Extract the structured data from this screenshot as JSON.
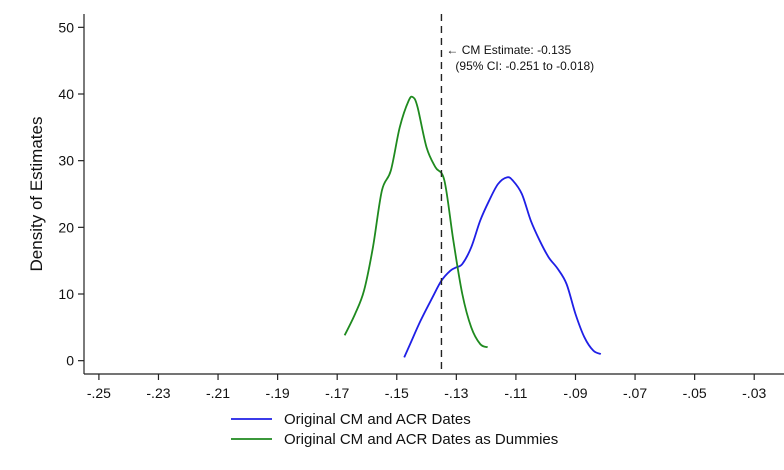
{
  "chart_data": {
    "type": "line",
    "title": "",
    "xlabel": "",
    "ylabel": "Density of Estimates",
    "xlim": [
      -0.255,
      -0.02
    ],
    "ylim": [
      -2,
      52
    ],
    "x_ticks": [
      -0.25,
      -0.23,
      -0.21,
      -0.19,
      -0.17,
      -0.15,
      -0.13,
      -0.11,
      -0.09,
      -0.07,
      -0.05,
      -0.03
    ],
    "x_tick_labels": [
      "-.25",
      "-.23",
      "-.21",
      "-.19",
      "-.17",
      "-.15",
      "-.13",
      "-.11",
      "-.09",
      "-.07",
      "-.05",
      "-.03"
    ],
    "y_ticks": [
      0,
      10,
      20,
      30,
      40,
      50
    ],
    "y_tick_labels": [
      "0",
      "10",
      "20",
      "30",
      "40",
      "50"
    ],
    "grid": false,
    "legend_position": "bottom",
    "reference_line": {
      "x": -0.135,
      "style": "dashed",
      "color": "#222222"
    },
    "annotation": {
      "line1": "← CM Estimate: -0.135",
      "line2": "(95% CI: -0.251 to -0.018)",
      "x": -0.134,
      "y": 46
    },
    "series": [
      {
        "name": "Original CM and ACR Dates",
        "color": "#1f1fe6",
        "x": [
          -0.1475,
          -0.1455,
          -0.142,
          -0.138,
          -0.135,
          -0.132,
          -0.13,
          -0.128,
          -0.125,
          -0.122,
          -0.119,
          -0.116,
          -0.113,
          -0.111,
          -0.108,
          -0.105,
          -0.102,
          -0.099,
          -0.096,
          -0.093,
          -0.09,
          -0.087,
          -0.084,
          -0.0815
        ],
        "y": [
          0.5,
          2.5,
          6,
          9.5,
          12,
          13.5,
          14,
          14.5,
          17,
          21,
          24,
          26.5,
          27.5,
          27,
          25,
          21,
          18,
          15.5,
          13.8,
          11.5,
          7,
          3.5,
          1.5,
          1
        ]
      },
      {
        "name": "Original CM and ACR Dates as Dummies",
        "color": "#1f8a1f",
        "x": [
          -0.1675,
          -0.164,
          -0.161,
          -0.158,
          -0.155,
          -0.152,
          -0.149,
          -0.146,
          -0.1445,
          -0.143,
          -0.14,
          -0.137,
          -0.134,
          -0.131,
          -0.128,
          -0.125,
          -0.122,
          -0.1195
        ],
        "y": [
          3.8,
          7,
          10.5,
          17,
          25.5,
          28.5,
          35,
          39,
          39.5,
          38,
          32,
          29,
          27,
          18,
          10,
          5,
          2.5,
          2
        ]
      }
    ]
  }
}
